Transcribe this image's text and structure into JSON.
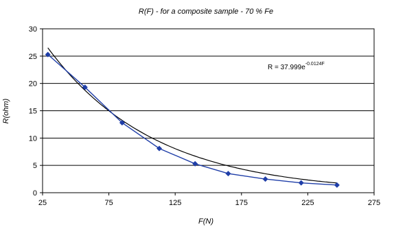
{
  "chart_data": {
    "type": "line",
    "title": "R(F) - for a composite sample - 70 % Fe",
    "xlabel": "F(N)",
    "ylabel": "R(ohm)",
    "xlim": [
      25,
      275
    ],
    "ylim": [
      0,
      30
    ],
    "xticks": [
      25,
      75,
      125,
      175,
      225,
      275
    ],
    "yticks": [
      0,
      5,
      10,
      15,
      20,
      25,
      30
    ],
    "grid": "horizontal",
    "series": [
      {
        "name": "",
        "color": "#1f3ea8",
        "marker": "diamond",
        "x": [
          29,
          57,
          85,
          113,
          140,
          165,
          193,
          220,
          247
        ],
        "y": [
          25.3,
          19.3,
          12.8,
          8.1,
          5.3,
          3.5,
          2.5,
          1.8,
          1.4
        ]
      }
    ],
    "trendline": {
      "type": "exponential",
      "a": 37.999,
      "b": -0.0124,
      "color": "#000000",
      "equation_text": "R = 37.999e",
      "equation_exponent": "-0.0124F"
    }
  }
}
